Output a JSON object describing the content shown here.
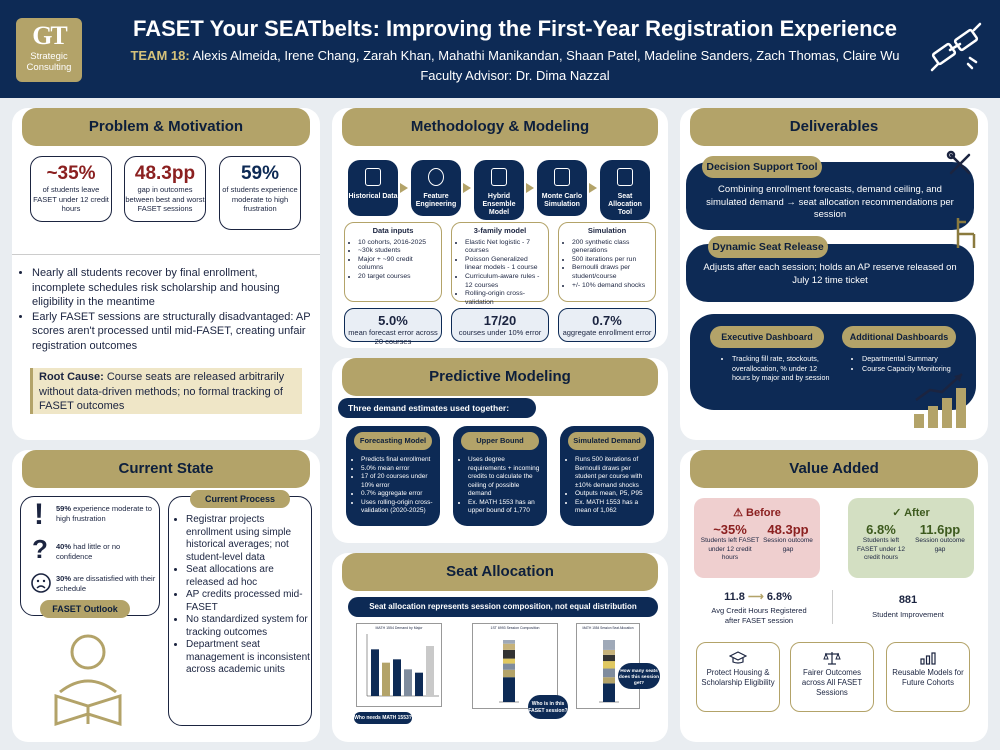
{
  "header": {
    "logo_text": "GT",
    "logo_sub1": "Strategic",
    "logo_sub2": "Consulting",
    "title": "FASET Your SEATbelts: Improving the First-Year Registration Experience",
    "team_label": "TEAM 18:",
    "team_members": "Alexis Almeida, Irene Chang, Zarah Khan, Mahathi Manikandan, Shaan Patel, Madeline Sanders, Zach Thomas, Claire Wu",
    "advisor": "Faculty Advisor: Dr. Dima Nazzal"
  },
  "problem": {
    "title": "Problem & Motivation",
    "stats": [
      {
        "value": "~35%",
        "label": "of students leave FASET under 12 credit hours"
      },
      {
        "value": "48.3pp",
        "label": "gap in outcomes between best and worst FASET sessions"
      },
      {
        "value": "59%",
        "label": "of students experience moderate to high frustration"
      }
    ],
    "bullets": [
      "Nearly all students recover by final enrollment, incomplete schedules risk scholarship and housing eligibility in the meantime",
      "Early FASET sessions are structurally disadvantaged: AP scores aren't processed until mid-FASET, creating unfair registration outcomes"
    ],
    "root_label": "Root Cause:",
    "root_text": " Course seats are released arbitrarily without data-driven methods; no formal tracking of FASET outcomes"
  },
  "current": {
    "title": "Current State",
    "outlook": [
      {
        "pct": "59%",
        "text": " experience moderate to high frustration"
      },
      {
        "pct": "40%",
        "text": " had little or no confidence"
      },
      {
        "pct": "30%",
        "text": " are dissatisfied with their schedule"
      }
    ],
    "outlook_label": "FASET Outlook",
    "process_label": "Current Process",
    "process": [
      "Registrar projects enrollment using simple historical averages; not student-level data",
      "Seat allocations are released ad hoc",
      "AP credits processed mid-FASET",
      "No standardized system for tracking outcomes",
      "Department seat management is inconsistent across academic units"
    ]
  },
  "method": {
    "title": "Methodology & Modeling",
    "nodes": [
      "Historical Data",
      "Feature Engineering",
      "Hybrid Ensemble Model",
      "Monte Carlo Simulation",
      "Seat Allocation Tool"
    ],
    "boxes": [
      {
        "title": "Data inputs",
        "items": [
          "10 cohorts, 2016-2025",
          "~30k students",
          "Major + ~90 credit columns",
          "20 target courses"
        ]
      },
      {
        "title": "3-family model",
        "items": [
          "Elastic Net logistic - 7 courses",
          "Poisson Generalized linear models - 1 course",
          "Curriculum-aware rules - 12 courses",
          "Rolling-origin cross-validation"
        ]
      },
      {
        "title": "Simulation",
        "items": [
          "200 synthetic class generations",
          "500 iterations per run",
          "Bernoulli draws per student/course",
          "+/- 10% demand shocks"
        ]
      }
    ],
    "stats": [
      {
        "value": "5.0%",
        "label": "mean forecast error across 20 courses"
      },
      {
        "value": "17/20",
        "label": "courses under 10% error"
      },
      {
        "value": "0.7%",
        "label": "aggregate enrollment error"
      }
    ]
  },
  "predictive": {
    "title": "Predictive Modeling",
    "banner": "Three demand estimates used together:",
    "cards": [
      {
        "title": "Forecasting Model",
        "items": [
          "Predicts final enrollment",
          "5.0% mean error",
          "17 of 20 courses under 10% error",
          "0.7% aggregate error",
          "Uses rolling-origin cross-validation (2020-2025)"
        ]
      },
      {
        "title": "Upper Bound",
        "items": [
          "Uses degree requirements + incoming credits to calculate the ceiling of possible demand",
          "Ex. MATH 1553 has an upper bound of 1,770"
        ]
      },
      {
        "title": "Simulated Demand",
        "items": [
          "Runs 500 iterations of Bernoulli draws per student per course with ±10% demand shocks",
          "Outputs mean, P5, P95",
          "Ex. MATH 1553 has a mean of 1,062"
        ]
      }
    ]
  },
  "seat": {
    "title": "Seat Allocation",
    "banner": "Seat allocation represents session composition, not equal distribution",
    "chart1_title": "MATH 1554 Demand by Major",
    "chart1_bubble": "Who needs MATH 1553?",
    "chart2_title": "1ST 6993 Session Composition",
    "chart2_bubble": "Who is in this FASET session?",
    "chart3_title": "MATH 1554 Session Seat Allocation",
    "chart3_bubble": "How many seats does this session get?",
    "chart_data": [
      {
        "type": "bar",
        "title": "MATH 1554 Demand by Major",
        "values": [
          28,
          20,
          22,
          16,
          14,
          30
        ]
      },
      {
        "type": "bar",
        "title": "1ST 6993 Session Composition",
        "values": [
          40,
          12,
          10,
          8,
          14,
          10,
          6
        ]
      },
      {
        "type": "bar",
        "title": "MATH 1554 Session Seat Allocation",
        "values": [
          30,
          10,
          14,
          12,
          10,
          8,
          16
        ]
      }
    ]
  },
  "deliverables": {
    "title": "Deliverables",
    "dst_label": "Decision Support Tool",
    "dst_text": "Combining enrollment forecasts, demand ceiling, and simulated demand → seat allocation recommendations per session",
    "dsr_label": "Dynamic Seat Release",
    "dsr_text": "Adjusts after each session; holds an AP reserve released on July 12 time ticket",
    "exec_label": "Executive Dashboard",
    "exec_text": "Tracking fill rate, stockouts, overallocation, % under 12 hours by major and by session",
    "add_label": "Additional Dashboards",
    "add_items": [
      "Departmental Summary",
      "Course Capacity Monitoring"
    ]
  },
  "value": {
    "title": "Value Added",
    "before_label": "⚠ Before",
    "before_stats": [
      {
        "value": "~35%",
        "label": "Students left FASET under 12 credit hours"
      },
      {
        "value": "48.3pp",
        "label": "Session outcome gap"
      }
    ],
    "after_label": "✓ After",
    "after_stats": [
      {
        "value": "6.8%",
        "label": "Students left FASET under 12 credit hours"
      },
      {
        "value": "11.6pp",
        "label": "Session outcome gap"
      }
    ],
    "credit_from": "11.8",
    "credit_to": "6.8%",
    "credit_label": "Avg Credit Hours Registered after FASET session",
    "improvement_value": "881",
    "improvement_label": "Student Improvement",
    "benefits": [
      "Protect Housing & Scholarship Eligibility",
      "Fairer Outcomes across All FASET Sessions",
      "Reusable Models for Future Cohorts"
    ]
  }
}
